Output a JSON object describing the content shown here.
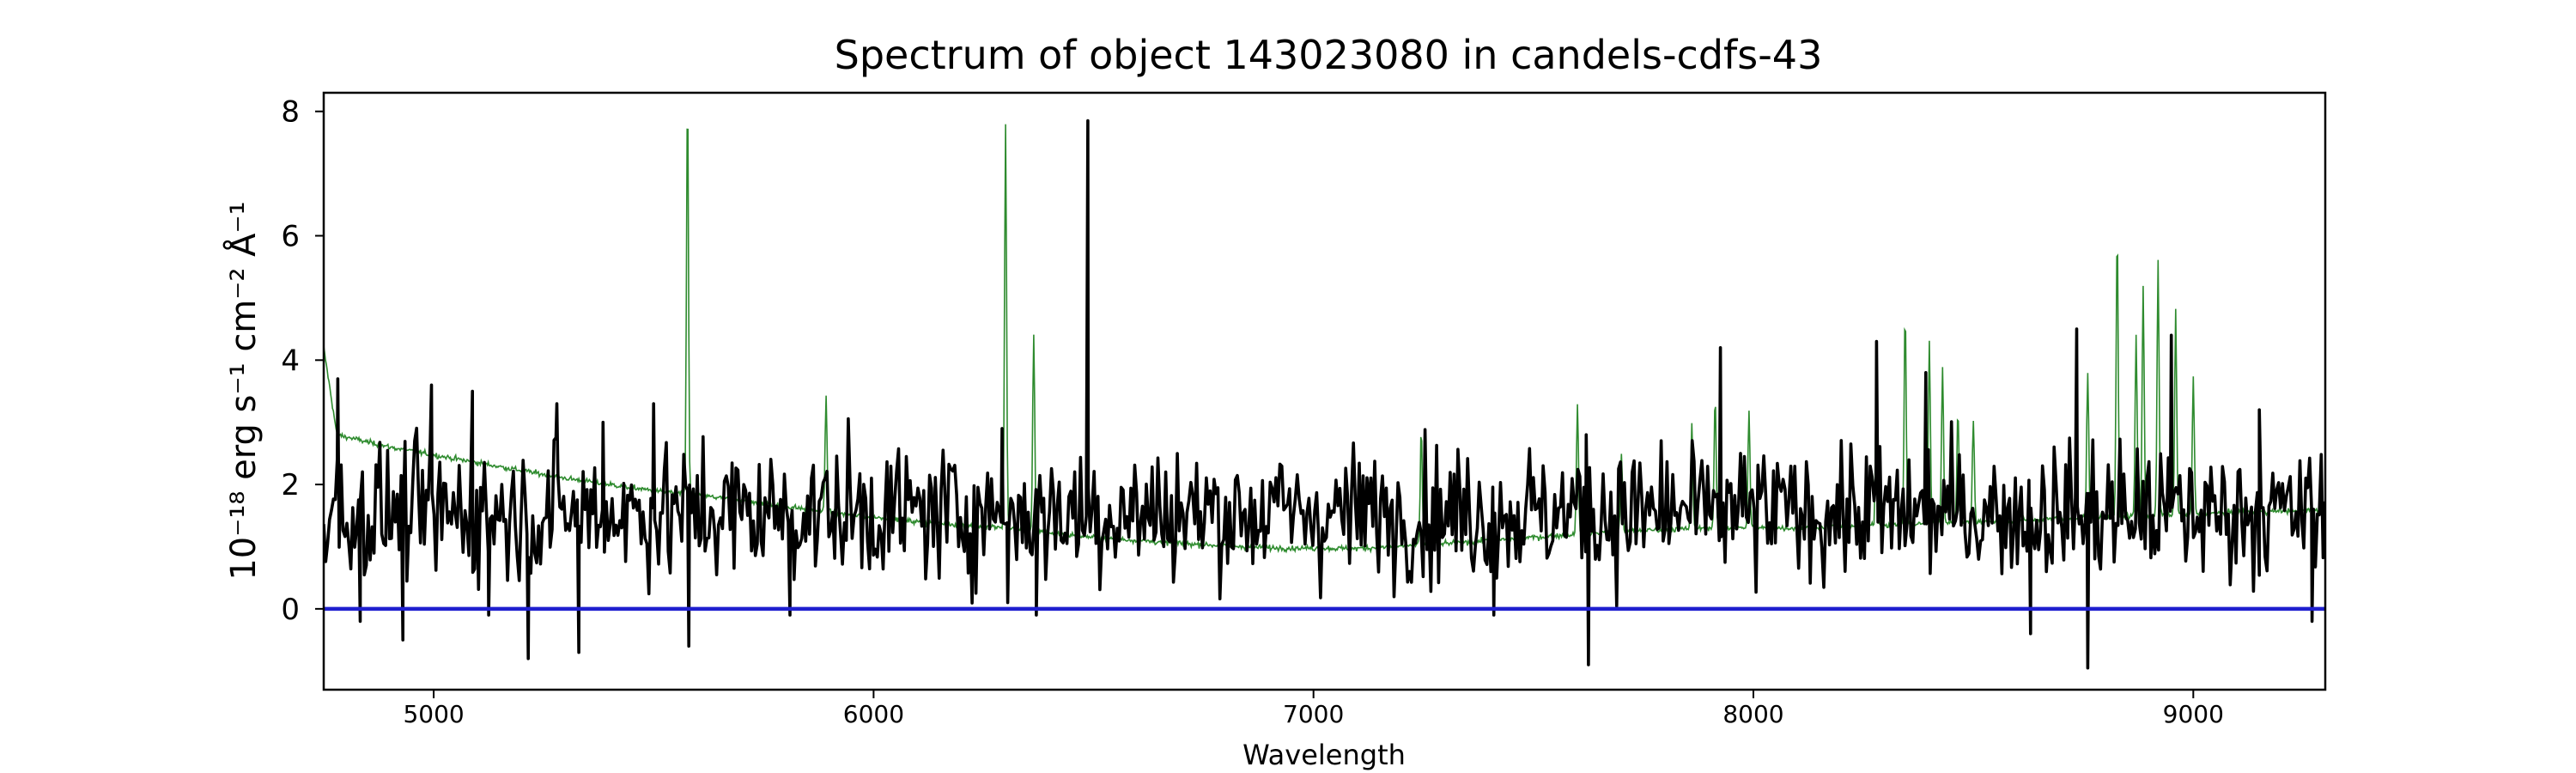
{
  "chart_data": {
    "type": "line",
    "title": "Spectrum of object 143023080 in candels-cdfs-43",
    "xlabel": "Wavelength",
    "ylabel": "10⁻¹⁸ erg s⁻¹ cm⁻² Å⁻¹",
    "xlim": [
      4750,
      9300
    ],
    "ylim": [
      -1.3,
      8.3
    ],
    "xticks": [
      5000,
      6000,
      7000,
      8000,
      9000
    ],
    "yticks": [
      0,
      2,
      4,
      6,
      8
    ],
    "grid": false,
    "legend": "none",
    "series": [
      {
        "role": "sky",
        "color": "#2e8b2e",
        "baseline": [
          [
            4750,
            4.2
          ],
          [
            4780,
            2.8
          ],
          [
            4900,
            2.6
          ],
          [
            5100,
            2.35
          ],
          [
            5300,
            2.1
          ],
          [
            5500,
            1.9
          ],
          [
            5700,
            1.75
          ],
          [
            5900,
            1.55
          ],
          [
            6100,
            1.4
          ],
          [
            6300,
            1.3
          ],
          [
            6500,
            1.15
          ],
          [
            6700,
            1.05
          ],
          [
            6900,
            0.98
          ],
          [
            7100,
            0.97
          ],
          [
            7300,
            1.05
          ],
          [
            7500,
            1.15
          ],
          [
            7700,
            1.25
          ],
          [
            7900,
            1.3
          ],
          [
            8100,
            1.3
          ],
          [
            8300,
            1.35
          ],
          [
            8500,
            1.4
          ],
          [
            8700,
            1.45
          ],
          [
            8900,
            1.5
          ],
          [
            9100,
            1.55
          ],
          [
            9300,
            1.6
          ]
        ],
        "emission_lines": [
          [
            5577,
            8.3
          ],
          [
            5892,
            3.4
          ],
          [
            6300,
            7.8
          ],
          [
            6364,
            4.4
          ],
          [
            7245,
            2.9
          ],
          [
            7600,
            3.3
          ],
          [
            7700,
            2.5
          ],
          [
            7860,
            3.0
          ],
          [
            7913,
            3.4
          ],
          [
            7990,
            3.2
          ],
          [
            8280,
            3.8
          ],
          [
            8345,
            4.8
          ],
          [
            8400,
            4.3
          ],
          [
            8430,
            3.9
          ],
          [
            8465,
            3.2
          ],
          [
            8500,
            3.0
          ],
          [
            8760,
            3.8
          ],
          [
            8827,
            6.1
          ],
          [
            8870,
            4.4
          ],
          [
            8886,
            5.2
          ],
          [
            8920,
            5.6
          ],
          [
            8960,
            4.8
          ],
          [
            9000,
            3.7
          ]
        ]
      },
      {
        "role": "object",
        "color": "#000000",
        "level": 1.55,
        "features": [
          [
            4782,
            3.7
          ],
          [
            4833,
            -0.2
          ],
          [
            4930,
            -0.5
          ],
          [
            4995,
            3.6
          ],
          [
            5088,
            3.5
          ],
          [
            5125,
            -0.1
          ],
          [
            5215,
            -0.8
          ],
          [
            5280,
            3.3
          ],
          [
            5330,
            -0.7
          ],
          [
            5385,
            3.0
          ],
          [
            5500,
            3.3
          ],
          [
            5580,
            -0.6
          ],
          [
            5810,
            -0.1
          ],
          [
            6292,
            2.9
          ],
          [
            6305,
            0.1
          ],
          [
            6370,
            -0.1
          ],
          [
            6487,
            7.85
          ],
          [
            7410,
            -0.1
          ],
          [
            7620,
            2.8
          ],
          [
            7625,
            -0.9
          ],
          [
            7925,
            4.2
          ],
          [
            8280,
            4.3
          ],
          [
            8392,
            3.8
          ],
          [
            8630,
            -0.4
          ],
          [
            8735,
            4.5
          ],
          [
            8760,
            -0.95
          ],
          [
            8950,
            4.4
          ],
          [
            9150,
            3.2
          ],
          [
            9270,
            -0.2
          ]
        ]
      },
      {
        "role": "zero",
        "color": "#1f1fcf",
        "value": 0
      }
    ]
  }
}
